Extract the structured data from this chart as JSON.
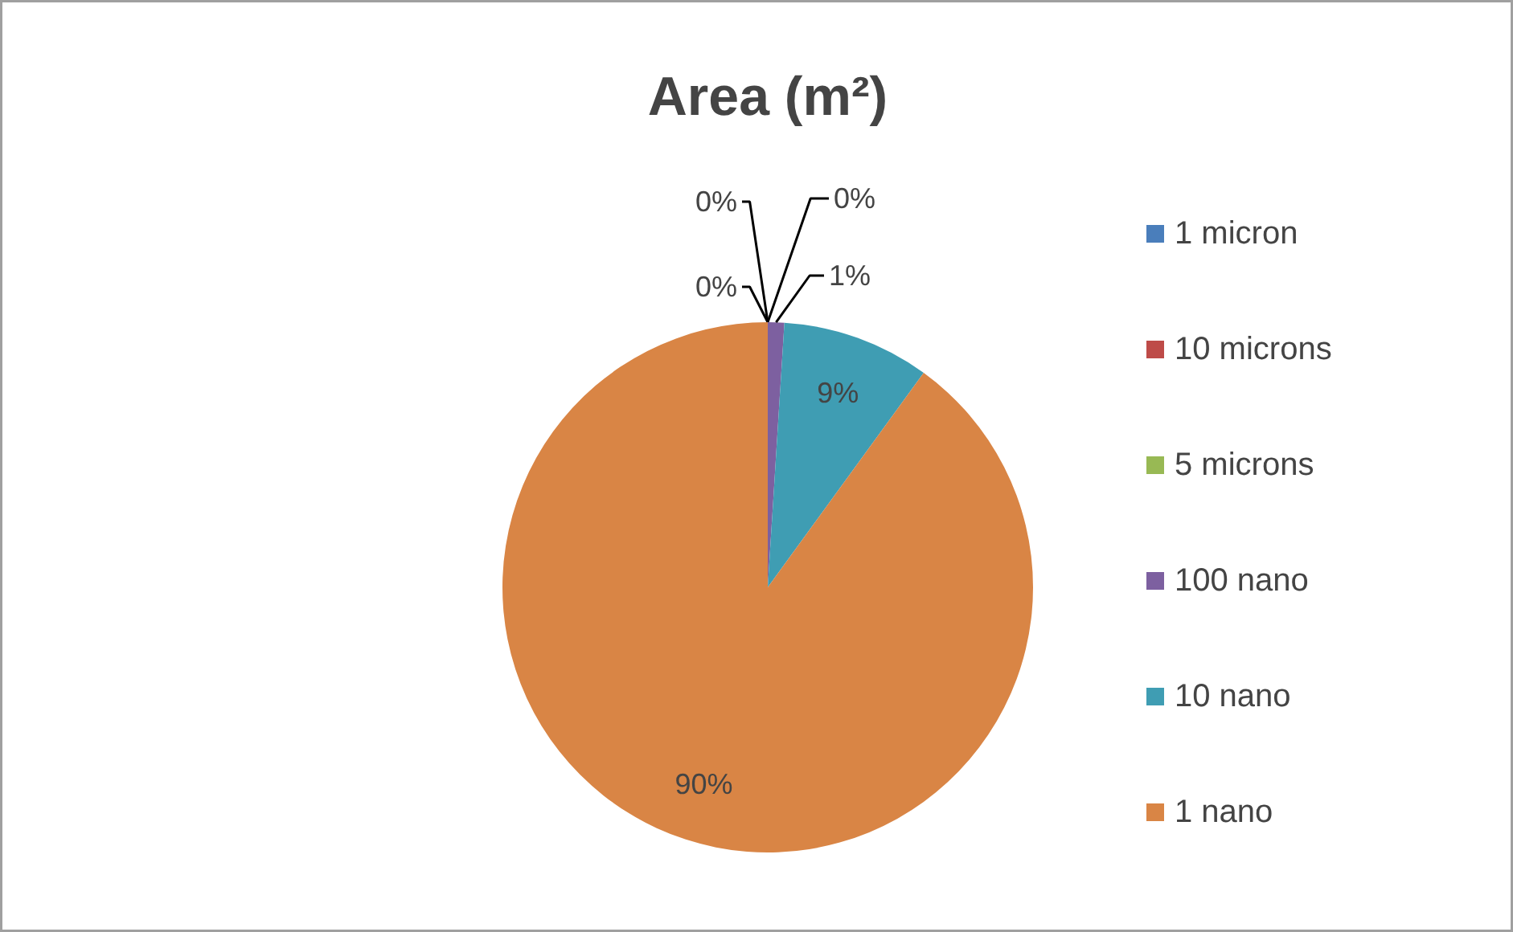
{
  "chart_data": {
    "type": "pie",
    "title": "Area (m²)",
    "categories": [
      "1 micron",
      "10 microns",
      "5 microns",
      "100 nano",
      "10 nano",
      "1 nano"
    ],
    "values": [
      0,
      0,
      0,
      1,
      9,
      90
    ],
    "colors": [
      "#4a7ebb",
      "#be4b48",
      "#98b954",
      "#7d60a0",
      "#3f9db3",
      "#d98545"
    ],
    "value_labels": [
      "0%",
      "0%",
      "0%",
      "1%",
      "9%",
      "90%"
    ],
    "legend": "right"
  }
}
